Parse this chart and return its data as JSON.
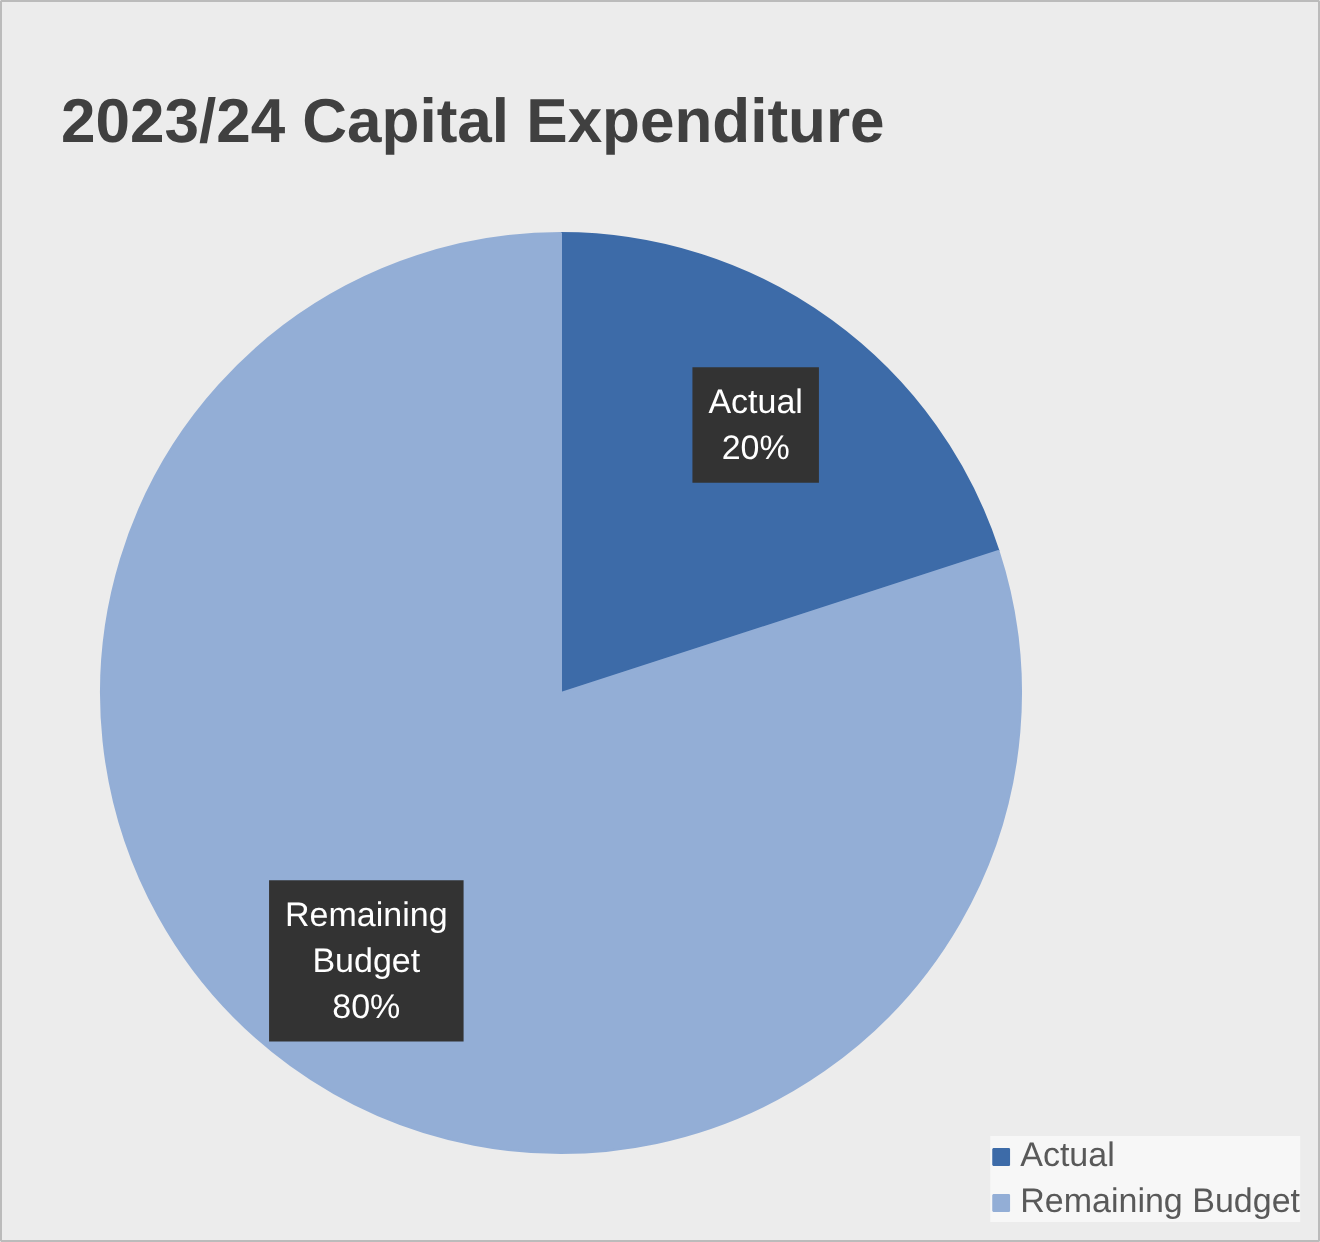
{
  "chart_data": {
    "type": "pie",
    "title": "2023/24 Capital Expenditure",
    "categories": [
      "Actual",
      "Remaining Budget"
    ],
    "values": [
      20,
      80
    ],
    "colors": [
      "#3d6ba8",
      "#93aed6"
    ],
    "value_labels": [
      "20%",
      "80%"
    ],
    "legend": "bottom right"
  }
}
